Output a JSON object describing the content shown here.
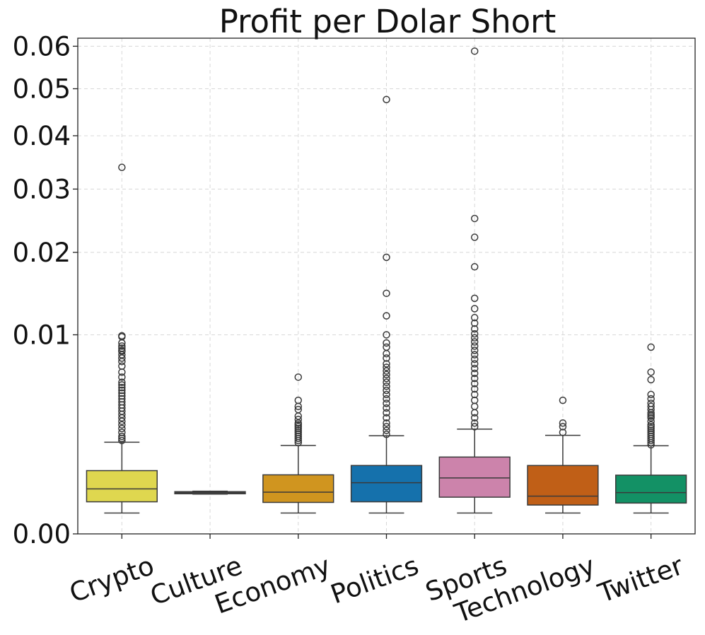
{
  "chart_data": {
    "type": "box",
    "title": "Profit per Dolar Short",
    "xlabel": "",
    "ylabel": "",
    "y_scale": "sqrt",
    "ylim": [
      0,
      0.062
    ],
    "yticks": [
      {
        "value": 0.0,
        "label": "0.00"
      },
      {
        "value": 0.01,
        "label": "0.01"
      },
      {
        "value": 0.02,
        "label": "0.02"
      },
      {
        "value": 0.03,
        "label": "0.03"
      },
      {
        "value": 0.04,
        "label": "0.04"
      },
      {
        "value": 0.05,
        "label": "0.05"
      },
      {
        "value": 0.06,
        "label": "0.06"
      }
    ],
    "grid": true,
    "categories": [
      "Crypto",
      "Culture",
      "Economy",
      "Politics",
      "Sports",
      "Technology",
      "Twitter"
    ],
    "boxes": [
      {
        "category": "Crypto",
        "color": "#dfd74f",
        "whislo": 0.00011,
        "q1": 0.00026,
        "med": 0.00051,
        "q3": 0.00101,
        "whishi": 0.00212,
        "fliers": [
          0.0339,
          0.0099,
          0.0098,
          0.0092,
          0.0089,
          0.0087,
          0.0085,
          0.0084,
          0.0081,
          0.0078,
          0.0075,
          0.0071,
          0.0066,
          0.0062,
          0.0058,
          0.0056,
          0.0054,
          0.0052,
          0.005,
          0.0048,
          0.0046,
          0.0044,
          0.0042,
          0.004,
          0.0038,
          0.0036,
          0.0034,
          0.0032,
          0.003,
          0.0028,
          0.0026,
          0.0024,
          0.0023,
          0.0022
        ]
      },
      {
        "category": "Culture",
        "color": "#6c6c6c",
        "whislo": 0.0004,
        "q1": 0.00041,
        "med": 0.00043,
        "q3": 0.00045,
        "whishi": 0.00046,
        "fliers": []
      },
      {
        "category": "Economy",
        "color": "#d0951f",
        "whislo": 0.00011,
        "q1": 0.00025,
        "med": 0.00044,
        "q3": 0.00088,
        "whishi": 0.00197,
        "fliers": [
          0.0062,
          0.0045,
          0.0041,
          0.0039,
          0.0035,
          0.0033,
          0.0031,
          0.003,
          0.0029,
          0.0028,
          0.0027,
          0.0026,
          0.0025,
          0.0024,
          0.0023,
          0.0022,
          0.0021
        ]
      },
      {
        "category": "Politics",
        "color": "#1571ac",
        "whislo": 0.00011,
        "q1": 0.00026,
        "med": 0.00066,
        "q3": 0.00118,
        "whishi": 0.00243,
        "fliers": [
          0.0476,
          0.0193,
          0.0146,
          0.012,
          0.01,
          0.0092,
          0.0088,
          0.0082,
          0.0078,
          0.0073,
          0.007,
          0.0067,
          0.0064,
          0.0061,
          0.0058,
          0.0055,
          0.0052,
          0.0049,
          0.0046,
          0.0043,
          0.004,
          0.0037,
          0.0034,
          0.0031,
          0.0029,
          0.0027,
          0.0025
        ]
      },
      {
        "category": "Sports",
        "color": "#cc83ab",
        "whislo": 0.00011,
        "q1": 0.00034,
        "med": 0.00079,
        "q3": 0.00149,
        "whishi": 0.00277,
        "fliers": [
          0.0588,
          0.0251,
          0.0222,
          0.018,
          0.014,
          0.0128,
          0.0118,
          0.0112,
          0.0106,
          0.0101,
          0.0097,
          0.0093,
          0.0089,
          0.0085,
          0.0081,
          0.0077,
          0.0073,
          0.0069,
          0.0065,
          0.0061,
          0.0057,
          0.0053,
          0.0049,
          0.0045,
          0.0041,
          0.0037,
          0.0034,
          0.0031,
          0.0029
        ]
      },
      {
        "category": "Technology",
        "color": "#c05f17",
        "whislo": 0.00011,
        "q1": 0.00021,
        "med": 0.00036,
        "q3": 0.00118,
        "whishi": 0.00245,
        "fliers": [
          0.0045,
          0.0031,
          0.0029,
          0.0026
        ]
      },
      {
        "category": "Twitter",
        "color": "#139165",
        "whislo": 0.00011,
        "q1": 0.00024,
        "med": 0.00043,
        "q3": 0.00087,
        "whishi": 0.00196,
        "fliers": [
          0.0088,
          0.0066,
          0.006,
          0.0049,
          0.0046,
          0.0043,
          0.0041,
          0.0039,
          0.0037,
          0.0036,
          0.0035,
          0.0034,
          0.0032,
          0.003,
          0.0029,
          0.0028,
          0.0027,
          0.0026,
          0.0025,
          0.0024,
          0.0023,
          0.0022,
          0.0021,
          0.002
        ]
      }
    ]
  }
}
